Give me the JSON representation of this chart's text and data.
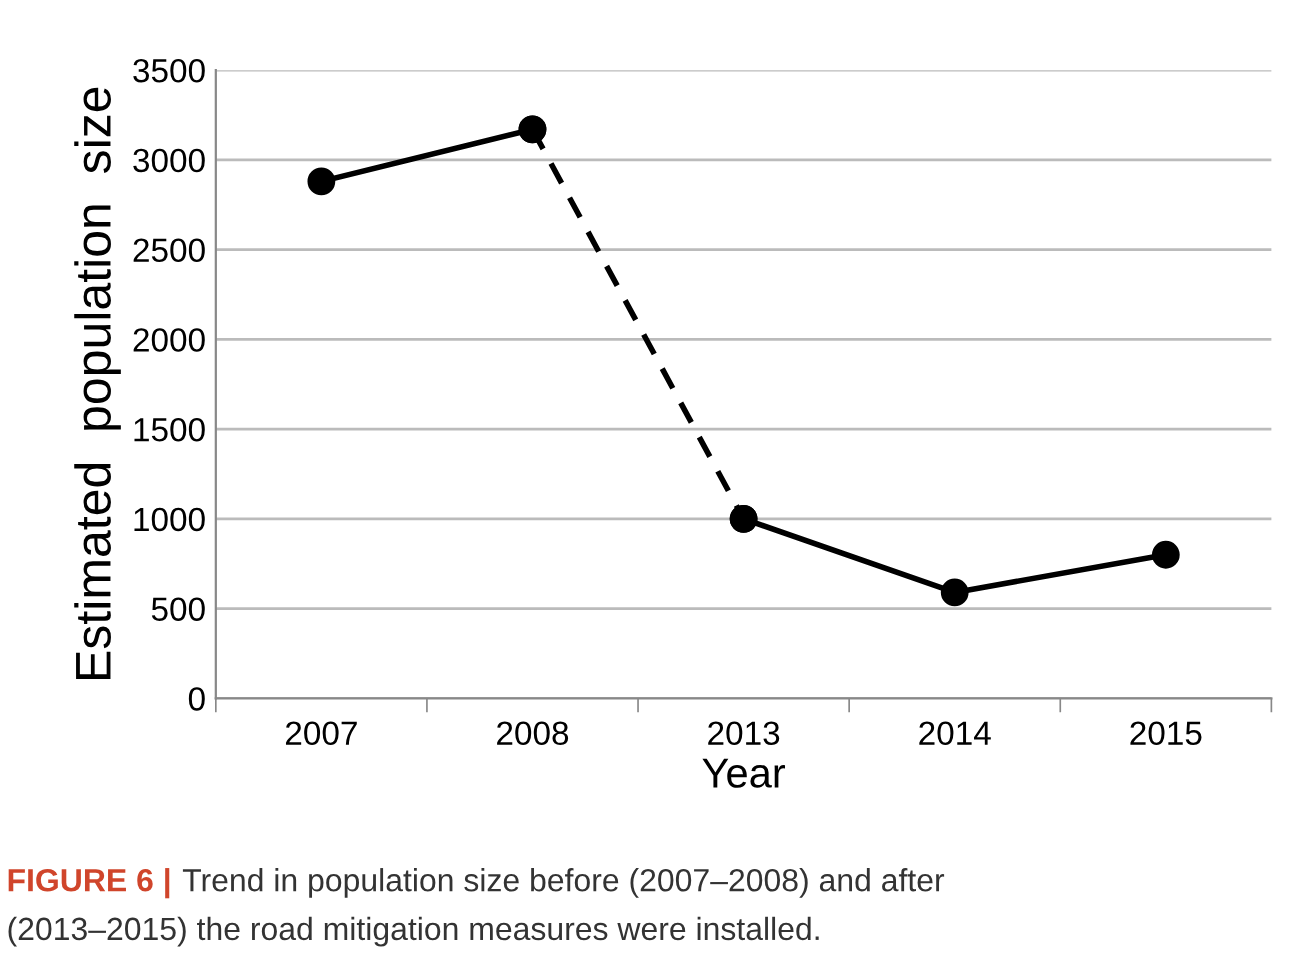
{
  "chart_data": {
    "type": "line",
    "xlabel": "Year",
    "ylabel": "Estimated  population  size",
    "categories": [
      "2007",
      "2008",
      "2013",
      "2014",
      "2015"
    ],
    "series": [
      {
        "color": "#000000",
        "line_style": "solid",
        "values": [
          2880,
          3170,
          null,
          null,
          null
        ]
      },
      {
        "color": "#000000",
        "line_style": "dashed",
        "values": [
          null,
          3170,
          1000,
          null,
          null
        ]
      },
      {
        "color": "#000000",
        "line_style": "solid",
        "values": [
          null,
          null,
          1000,
          590,
          800
        ]
      }
    ],
    "marker": "circle",
    "ylim": [
      0,
      3500
    ],
    "yticks": [
      0,
      500,
      1000,
      1500,
      2000,
      2500,
      3000,
      3500
    ],
    "grid": "y",
    "legend": false,
    "annotations": [
      "FIGURE 6 |",
      "Trend in population size before (2007–2008) and after",
      "(2013–2015) the road mitigation measures were installed."
    ]
  }
}
